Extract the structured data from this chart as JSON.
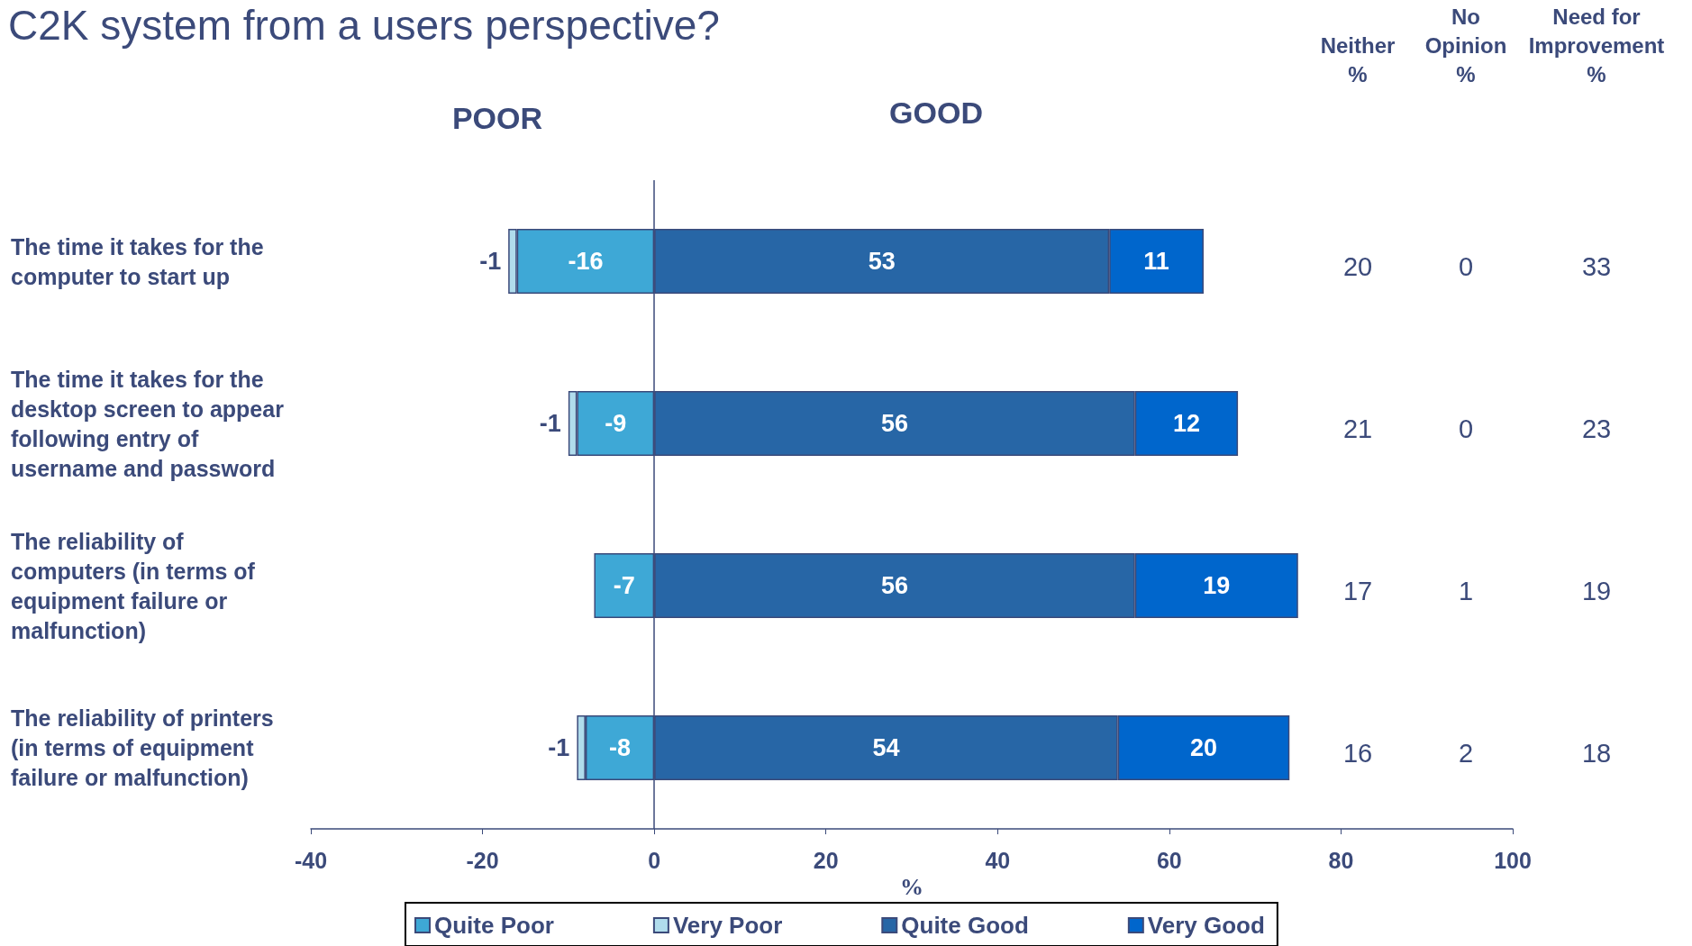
{
  "chart_data": {
    "type": "bar",
    "orientation": "horizontal",
    "stacked": true,
    "title": "C2K system from a users perspective?",
    "xlabel": "%",
    "categories": [
      "The time it takes for the computer to start up",
      "The time it takes for the desktop screen to appear following entry of username and password",
      "The reliability of computers (in terms of equipment failure or malfunction)",
      "The reliability of printers (in terms of equipment failure or malfunction)"
    ],
    "series": [
      {
        "name": "Quite Poor",
        "color": "#3ea8d6",
        "values": [
          -16,
          -9,
          -7,
          -8
        ]
      },
      {
        "name": "Very Poor",
        "color": "#b0dcec",
        "values": [
          -1,
          -1,
          null,
          -1
        ]
      },
      {
        "name": "Quite Good",
        "color": "#2766a6",
        "values": [
          53,
          56,
          56,
          54
        ]
      },
      {
        "name": "Very Good",
        "color": "#0066cc",
        "values": [
          11,
          12,
          19,
          20
        ]
      }
    ],
    "xlim": [
      -40,
      100
    ],
    "xticks": [
      -40,
      -20,
      0,
      20,
      40,
      60,
      80,
      100
    ],
    "ref_lines": [
      {
        "axis": "x",
        "value": 0,
        "color": "#3b4a7a"
      }
    ],
    "data_labels": true,
    "grid": false,
    "legend": "bottom",
    "annotations": [
      "POOR",
      "GOOD",
      "Neither\n%",
      "No\nOpinion\n%",
      "Need for\nImprovement\n%",
      "20",
      "0",
      "33",
      "21",
      "0",
      "23",
      "17",
      "1",
      "19",
      "16",
      "2",
      "18"
    ]
  }
}
